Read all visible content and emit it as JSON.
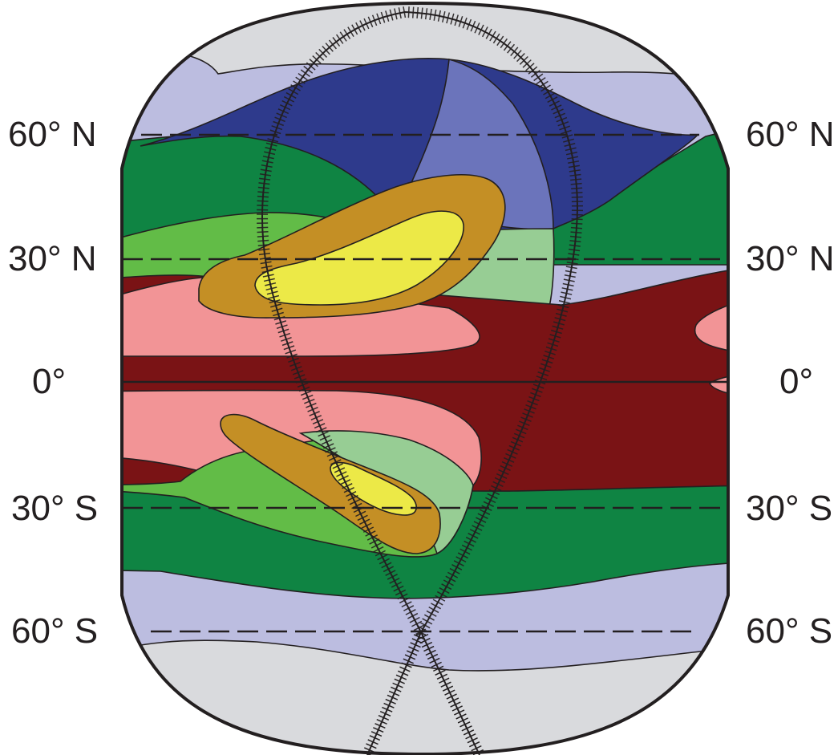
{
  "map": {
    "latitude_labels": {
      "n60": "60° N",
      "n30": "30° N",
      "eq": "0°",
      "s30": "30° S",
      "s60": "60° S"
    },
    "colors": {
      "polar_gray": "#d9dadd",
      "light_lavender": "#bcbde0",
      "dark_navy": "#2e3a8c",
      "medium_blue": "#6b74bb",
      "dark_green": "#0f8443",
      "light_green": "#62bc47",
      "pale_green": "#97cd94",
      "mustard": "#c48f25",
      "yellow": "#ece947",
      "pink": "#f29496",
      "dark_red": "#7a1315",
      "outline": "#231f20"
    },
    "features": [
      "north-polar-cap",
      "north-lavender-band",
      "north-navy-region",
      "north-medium-blue-region",
      "north-dark-green-band",
      "north-light-green-band",
      "north-pale-green-region",
      "north-mustard-lobe",
      "north-yellow-core",
      "north-pink-band",
      "equatorial-dark-red-band",
      "south-pink-band",
      "south-light-green-band",
      "south-mustard-lobe",
      "south-yellow-core",
      "south-dark-green-band",
      "south-lavender-band",
      "south-polar-cap",
      "hatched-teardrop-outline"
    ]
  }
}
